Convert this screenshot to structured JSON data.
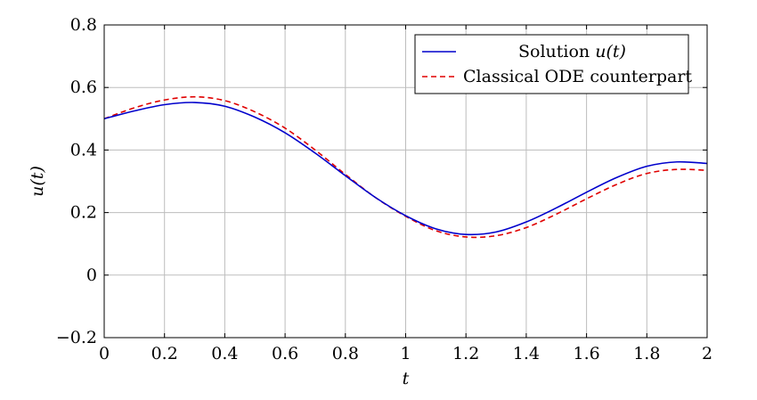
{
  "chart_data": {
    "type": "line",
    "xlabel": "t",
    "ylabel": "u(t)",
    "xlim": [
      0,
      2
    ],
    "ylim": [
      -0.2,
      0.8
    ],
    "xticks": [
      0,
      0.2,
      0.4,
      0.6,
      0.8,
      1,
      1.2,
      1.4,
      1.6,
      1.8,
      2
    ],
    "xtick_labels": [
      "0",
      "0.2",
      "0.4",
      "0.6",
      "0.8",
      "1",
      "1.2",
      "1.4",
      "1.6",
      "1.8",
      "2"
    ],
    "yticks": [
      -0.2,
      0,
      0.2,
      0.4,
      0.6,
      0.8
    ],
    "ytick_labels": [
      "−0.2",
      "0",
      "0.2",
      "0.4",
      "0.6",
      "0.8"
    ],
    "grid": true,
    "legend_position": "top-right",
    "series": [
      {
        "name": "Solution u(t)",
        "legend_prefix": "Solution ",
        "legend_italic": "u(t)",
        "color": "#0000cc",
        "style": "solid",
        "x": [
          0,
          0.1,
          0.2,
          0.3,
          0.4,
          0.5,
          0.6,
          0.7,
          0.8,
          0.9,
          1.0,
          1.1,
          1.2,
          1.3,
          1.4,
          1.5,
          1.6,
          1.7,
          1.8,
          1.9,
          2.0
        ],
        "y": [
          0.5,
          0.525,
          0.545,
          0.552,
          0.54,
          0.505,
          0.455,
          0.39,
          0.318,
          0.248,
          0.19,
          0.148,
          0.13,
          0.138,
          0.17,
          0.215,
          0.265,
          0.312,
          0.348,
          0.362,
          0.357
        ]
      },
      {
        "name": "Classical ODE counterpart",
        "legend_prefix": "Classical ODE counterpart",
        "legend_italic": "",
        "color": "#e00000",
        "style": "dashed",
        "x": [
          0,
          0.1,
          0.2,
          0.3,
          0.4,
          0.5,
          0.6,
          0.7,
          0.8,
          0.9,
          1.0,
          1.1,
          1.2,
          1.3,
          1.4,
          1.5,
          1.6,
          1.7,
          1.8,
          1.9,
          2.0
        ],
        "y": [
          0.5,
          0.535,
          0.56,
          0.57,
          0.558,
          0.522,
          0.47,
          0.4,
          0.322,
          0.248,
          0.188,
          0.142,
          0.122,
          0.126,
          0.152,
          0.195,
          0.244,
          0.29,
          0.325,
          0.338,
          0.335
        ]
      }
    ]
  }
}
